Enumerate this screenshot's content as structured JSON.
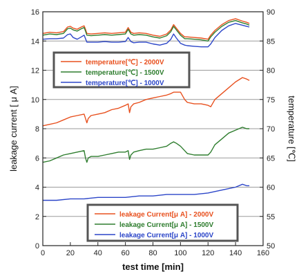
{
  "chart_data": {
    "type": "line",
    "xlabel": "test time [min]",
    "ylabel_left": "leakage current [ μ A]",
    "ylabel_right": "temperature [℃]",
    "xlim": [
      0,
      160
    ],
    "ylim_left": [
      0,
      16
    ],
    "ylim_right": [
      50,
      90
    ],
    "x_ticks": [
      "0",
      "20",
      "40",
      "60",
      "80",
      "100",
      "120",
      "140",
      "160"
    ],
    "y_left_ticks": [
      "0",
      "2",
      "4",
      "6",
      "8",
      "10",
      "12",
      "14",
      "16"
    ],
    "y_right_ticks": [
      "50",
      "55",
      "60",
      "65",
      "70",
      "75",
      "80",
      "85",
      "90"
    ],
    "grid": "horizontal",
    "legend_temperature": "upper-left",
    "legend_current": "lower-right",
    "series": [
      {
        "name": "temperature[℃] - 2000V",
        "axis": "right",
        "color": "#e8501e",
        "x": [
          0,
          5,
          10,
          15,
          18,
          20,
          22,
          25,
          28,
          30,
          31,
          32,
          35,
          40,
          45,
          50,
          55,
          60,
          62,
          64,
          66,
          70,
          75,
          80,
          85,
          90,
          93,
          95,
          97,
          100,
          103,
          105,
          110,
          115,
          120,
          122,
          125,
          130,
          135,
          140,
          145,
          148,
          150
        ],
        "y": [
          86.3,
          86.5,
          86.4,
          86.6,
          87.4,
          87.5,
          87.2,
          87.0,
          87.4,
          87.6,
          87.0,
          86.3,
          86.2,
          86.3,
          86.4,
          86.3,
          86.4,
          86.5,
          87.3,
          86.5,
          86.3,
          86.4,
          86.3,
          86.0,
          85.8,
          86.2,
          86.9,
          87.8,
          87.2,
          86.3,
          85.7,
          85.7,
          85.6,
          85.5,
          85.3,
          86.0,
          86.8,
          87.8,
          88.5,
          88.8,
          88.4,
          88.2,
          88.0
        ]
      },
      {
        "name": "temperature[℃] - 1500V",
        "axis": "right",
        "color": "#2e7d2e",
        "x": [
          0,
          5,
          10,
          15,
          18,
          20,
          22,
          25,
          28,
          30,
          31,
          32,
          35,
          40,
          45,
          50,
          55,
          60,
          62,
          64,
          66,
          70,
          75,
          80,
          85,
          90,
          93,
          95,
          97,
          100,
          103,
          105,
          110,
          115,
          120,
          122,
          125,
          130,
          135,
          140,
          145,
          148,
          150
        ],
        "y": [
          86.0,
          86.2,
          86.1,
          86.3,
          87.1,
          87.2,
          86.9,
          86.7,
          87.1,
          87.3,
          86.7,
          86.0,
          85.9,
          86.0,
          86.1,
          86.0,
          86.1,
          86.2,
          87.0,
          86.2,
          86.0,
          86.1,
          86.0,
          85.7,
          85.5,
          85.9,
          86.6,
          87.5,
          86.9,
          86.0,
          85.4,
          85.4,
          85.3,
          85.2,
          85.0,
          85.7,
          86.5,
          87.5,
          88.2,
          88.5,
          88.1,
          87.9,
          87.7
        ]
      },
      {
        "name": "temperature[℃] - 1000V",
        "axis": "right",
        "color": "#2b45c8",
        "x": [
          0,
          5,
          10,
          15,
          18,
          20,
          22,
          25,
          28,
          30,
          31,
          32,
          35,
          40,
          45,
          50,
          55,
          60,
          62,
          64,
          66,
          70,
          75,
          80,
          85,
          90,
          93,
          95,
          97,
          100,
          103,
          105,
          110,
          115,
          120,
          122,
          125,
          130,
          135,
          140,
          145,
          148,
          150
        ],
        "y": [
          85.3,
          85.4,
          85.4,
          85.5,
          86.1,
          86.2,
          85.6,
          85.3,
          85.7,
          86.0,
          85.4,
          84.8,
          84.8,
          84.8,
          84.9,
          84.8,
          84.8,
          84.9,
          85.6,
          84.9,
          84.7,
          84.8,
          84.8,
          84.5,
          84.3,
          84.6,
          85.3,
          86.2,
          85.5,
          84.6,
          84.3,
          84.2,
          84.1,
          84.0,
          84.0,
          84.5,
          85.6,
          86.8,
          87.6,
          88.0,
          87.7,
          87.5,
          87.4
        ]
      },
      {
        "name": "leakage Current[μ A] - 2000V",
        "axis": "left",
        "color": "#e8501e",
        "x": [
          0,
          5,
          10,
          15,
          20,
          25,
          30,
          31,
          32,
          33,
          35,
          40,
          45,
          50,
          55,
          60,
          62,
          63,
          64,
          66,
          70,
          75,
          80,
          85,
          90,
          93,
          95,
          97,
          100,
          103,
          105,
          110,
          115,
          120,
          122,
          125,
          130,
          135,
          140,
          145,
          148,
          150
        ],
        "y": [
          8.2,
          8.3,
          8.4,
          8.6,
          8.8,
          8.9,
          9.0,
          8.7,
          8.4,
          8.7,
          8.9,
          9.0,
          9.1,
          9.3,
          9.4,
          9.6,
          9.7,
          9.1,
          9.5,
          9.7,
          9.8,
          10.0,
          10.1,
          10.2,
          10.3,
          10.4,
          10.5,
          10.5,
          10.5,
          10.0,
          9.8,
          9.7,
          9.7,
          9.6,
          9.5,
          10.0,
          10.4,
          10.8,
          11.2,
          11.5,
          11.4,
          11.3
        ]
      },
      {
        "name": "leakage Current[μ A] - 1500V",
        "axis": "left",
        "color": "#2e7d2e",
        "x": [
          0,
          5,
          10,
          15,
          20,
          25,
          30,
          31,
          32,
          33,
          35,
          40,
          45,
          50,
          55,
          60,
          62,
          63,
          64,
          66,
          70,
          75,
          80,
          85,
          90,
          93,
          95,
          97,
          100,
          103,
          105,
          110,
          115,
          120,
          122,
          125,
          130,
          135,
          140,
          145,
          148,
          150
        ],
        "y": [
          5.7,
          5.8,
          6.0,
          6.2,
          6.3,
          6.4,
          6.5,
          6.0,
          5.7,
          6.0,
          6.1,
          6.1,
          6.2,
          6.3,
          6.4,
          6.4,
          6.5,
          5.9,
          6.2,
          6.4,
          6.5,
          6.6,
          6.6,
          6.7,
          6.8,
          7.0,
          7.1,
          7.0,
          6.8,
          6.5,
          6.3,
          6.2,
          6.2,
          6.2,
          6.4,
          6.9,
          7.3,
          7.7,
          7.9,
          8.1,
          8.0,
          8.0
        ]
      },
      {
        "name": "leakage Current[μ A] - 1000V",
        "axis": "left",
        "color": "#2b45c8",
        "x": [
          0,
          10,
          20,
          30,
          40,
          50,
          60,
          70,
          80,
          90,
          100,
          110,
          120,
          125,
          130,
          135,
          140,
          145,
          148,
          150
        ],
        "y": [
          3.1,
          3.1,
          3.2,
          3.2,
          3.3,
          3.3,
          3.3,
          3.4,
          3.4,
          3.5,
          3.5,
          3.5,
          3.6,
          3.7,
          3.8,
          3.9,
          4.0,
          4.2,
          4.1,
          4.1
        ]
      }
    ]
  }
}
